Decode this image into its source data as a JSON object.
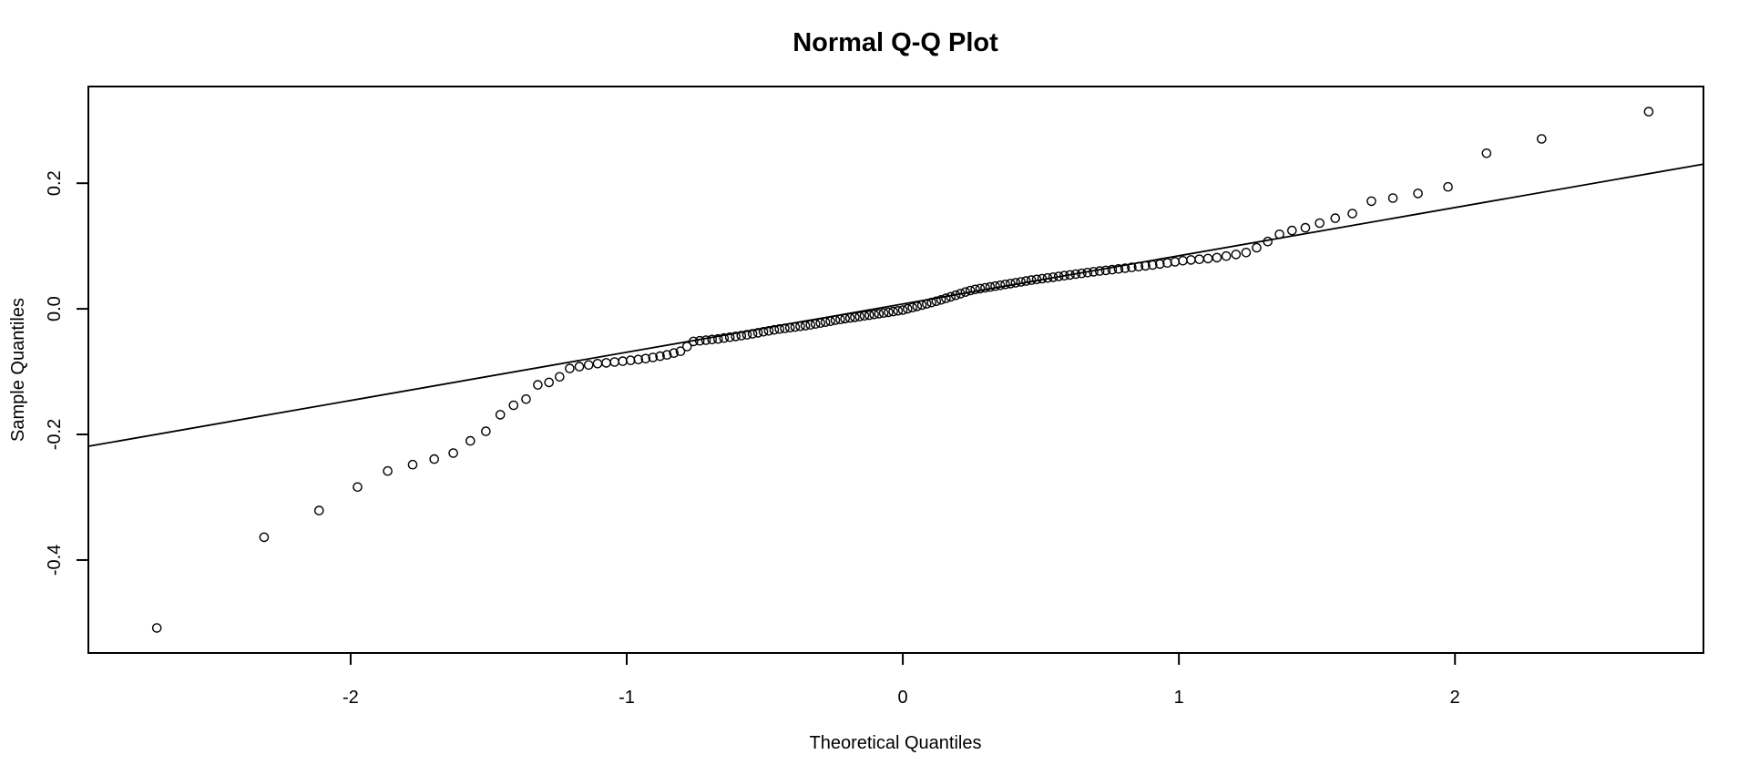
{
  "figure": {
    "title": "Normal Q-Q Plot",
    "x_axis_label": "Theoretical Quantiles",
    "y_axis_label": "Sample Quantiles"
  },
  "chart_data": {
    "type": "scatter",
    "title": "Normal Q-Q Plot",
    "xlabel": "Theoretical Quantiles",
    "ylabel": "Sample Quantiles",
    "xlim": [
      -2.95,
      2.9
    ],
    "ylim": [
      -0.548,
      0.354
    ],
    "x_ticks": [
      -2,
      -1,
      0,
      1,
      2
    ],
    "x_tick_labels": [
      "-2",
      "-1",
      "0",
      "1",
      "2"
    ],
    "y_ticks": [
      -0.4,
      -0.2,
      0.0,
      0.2
    ],
    "y_tick_labels": [
      "-0.4",
      "-0.2",
      "0.0",
      "0.2"
    ],
    "grid": false,
    "legend": null,
    "marker": "open-circle",
    "marker_radius_px": 4.6,
    "colors": {
      "points": "#000000",
      "reference_line": "#000000",
      "frame": "#000000",
      "background": "#ffffff"
    },
    "n_points": 145,
    "reference_line": {
      "slope": 0.0768,
      "intercept": 0.0077,
      "x_start": -2.95,
      "x_end": 2.9
    },
    "points_read_note": "Sample-quantile curve anchors read from the plotted points (theoretical quantile, sample quantile); the full set of n_points open circles lies monotonically along this curve per normal plotting positions.",
    "points_read": [
      [
        -2.72,
        -0.515
      ],
      [
        -2.33,
        -0.367
      ],
      [
        -2.16,
        -0.333
      ],
      [
        -2.01,
        -0.294
      ],
      [
        -1.9,
        -0.262
      ],
      [
        -1.81,
        -0.252
      ],
      [
        -1.73,
        -0.243
      ],
      [
        -1.66,
        -0.235
      ],
      [
        -1.6,
        -0.225
      ],
      [
        -1.55,
        -0.203
      ],
      [
        -1.5,
        -0.193
      ],
      [
        -1.45,
        -0.164
      ],
      [
        -1.4,
        -0.151
      ],
      [
        -1.36,
        -0.143
      ],
      [
        -1.32,
        -0.12
      ],
      [
        -1.28,
        -0.117
      ],
      [
        -1.25,
        -0.112
      ],
      [
        -1.22,
        -0.096
      ],
      [
        -1.12,
        -0.088
      ],
      [
        -1.03,
        -0.084
      ],
      [
        -0.94,
        -0.08
      ],
      [
        -0.86,
        -0.074
      ],
      [
        -0.8,
        -0.067
      ],
      [
        -0.76,
        -0.052
      ],
      [
        -0.67,
        -0.048
      ],
      [
        -0.56,
        -0.041
      ],
      [
        -0.46,
        -0.033
      ],
      [
        -0.34,
        -0.026
      ],
      [
        -0.23,
        -0.017
      ],
      [
        -0.12,
        -0.01
      ],
      [
        0.0,
        -0.002
      ],
      [
        0.13,
        0.013
      ],
      [
        0.25,
        0.03
      ],
      [
        0.47,
        0.046
      ],
      [
        0.69,
        0.059
      ],
      [
        0.91,
        0.07
      ],
      [
        1.02,
        0.077
      ],
      [
        1.13,
        0.081
      ],
      [
        1.24,
        0.089
      ],
      [
        1.3,
        0.101
      ],
      [
        1.36,
        0.118
      ],
      [
        1.4,
        0.124
      ],
      [
        1.45,
        0.128
      ],
      [
        1.5,
        0.135
      ],
      [
        1.56,
        0.144
      ],
      [
        1.61,
        0.146
      ],
      [
        1.69,
        0.171
      ],
      [
        1.76,
        0.175
      ],
      [
        1.85,
        0.183
      ],
      [
        1.96,
        0.188
      ],
      [
        2.1,
        0.246
      ],
      [
        2.29,
        0.268
      ],
      [
        2.72,
        0.316
      ]
    ]
  }
}
